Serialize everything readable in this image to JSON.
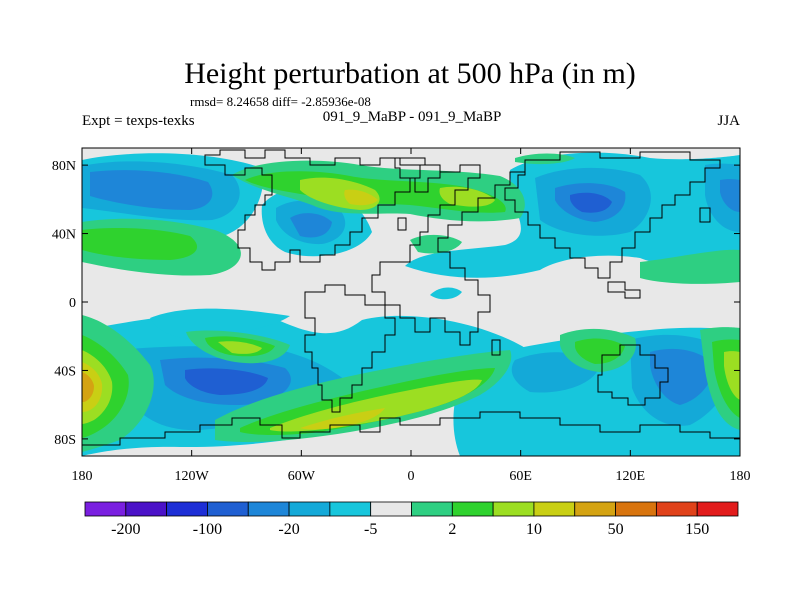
{
  "title": "Height perturbation at 500 hPa (in m)",
  "stats": "rmsd= 8.24658 diff= -2.85936e-08",
  "left_label": "Expt = texps-texks",
  "center_label": "091_9_MaBP - 091_9_MaBP",
  "right_label": "JJA",
  "lat_ticks": [
    {
      "label": "80N",
      "lat": 80
    },
    {
      "label": "40N",
      "lat": 40
    },
    {
      "label": "0",
      "lat": 0
    },
    {
      "label": "40S",
      "lat": -40
    },
    {
      "label": "80S",
      "lat": -80
    }
  ],
  "lon_ticks": [
    {
      "label": "180",
      "lon": -180
    },
    {
      "label": "120W",
      "lon": -120
    },
    {
      "label": "60W",
      "lon": -60
    },
    {
      "label": "0",
      "lon": 0
    },
    {
      "label": "60E",
      "lon": 60
    },
    {
      "label": "120E",
      "lon": 120
    },
    {
      "label": "180",
      "lon": 180
    }
  ],
  "colorbar": {
    "colors": [
      "#7a1fe0",
      "#4b12c8",
      "#1e2fd6",
      "#1f5fd2",
      "#1e86d8",
      "#14a9d8",
      "#17c6dc",
      "#e8e8e8",
      "#2ecf82",
      "#2fd22e",
      "#9cde22",
      "#c9cf14",
      "#d4a312",
      "#d8740e",
      "#e0421a",
      "#e21c1c"
    ],
    "labels": [
      {
        "text": "-200",
        "after": 1
      },
      {
        "text": "-100",
        "after": 3
      },
      {
        "text": "-20",
        "after": 5
      },
      {
        "text": "-5",
        "after": 7
      },
      {
        "text": "2",
        "after": 9
      },
      {
        "text": "10",
        "after": 11
      },
      {
        "text": "50",
        "after": 13
      },
      {
        "text": "150",
        "after": 15
      }
    ]
  },
  "field_bands": [
    {
      "name": "lt-neg-5",
      "color": "#17c6dc"
    },
    {
      "name": "lt-neg-10",
      "color": "#14a9d8"
    },
    {
      "name": "lt-neg-20",
      "color": "#1e86d8"
    },
    {
      "name": "lt-neg-50",
      "color": "#1f5fd2"
    },
    {
      "name": "gt-2",
      "color": "#2ecf82"
    },
    {
      "name": "gt-5",
      "color": "#2fd22e"
    },
    {
      "name": "gt-10",
      "color": "#9cde22"
    },
    {
      "name": "gt-20",
      "color": "#c9cf14"
    },
    {
      "name": "gt-50",
      "color": "#d4a312"
    }
  ]
}
